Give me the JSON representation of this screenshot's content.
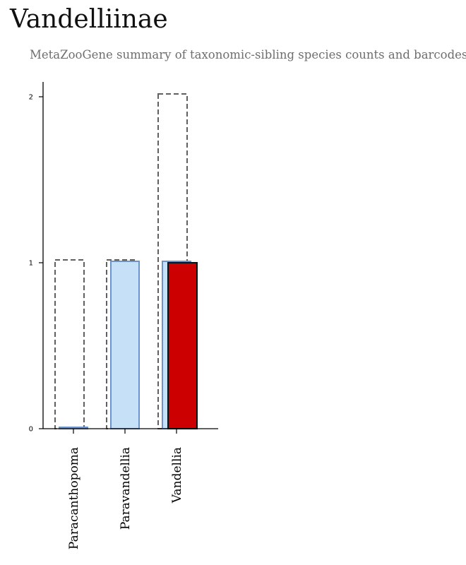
{
  "header": {
    "title": "Vandelliinae",
    "subtitle": "MetaZooGene summary of taxonomic-sibling species counts and barcodes."
  },
  "chart_data": {
    "type": "bar",
    "categories": [
      "Paracanthopoma",
      "Paravandellia",
      "Vandellia"
    ],
    "series": [
      {
        "style": "dashed-outline",
        "values": [
          1,
          1,
          2
        ]
      },
      {
        "style": "light-blue-fill",
        "values": [
          0,
          1,
          1
        ]
      },
      {
        "style": "red-fill",
        "values": [
          0,
          0,
          1
        ]
      }
    ],
    "yticks": [
      0,
      1,
      2
    ],
    "ylim": [
      0,
      2.1
    ],
    "grid": false,
    "colors": {
      "outline": "#606060",
      "blue_fill": "#c6e0f7",
      "blue_stroke": "#6b93cc",
      "red_fill": "#cc0000",
      "red_stroke": "#111111"
    }
  }
}
